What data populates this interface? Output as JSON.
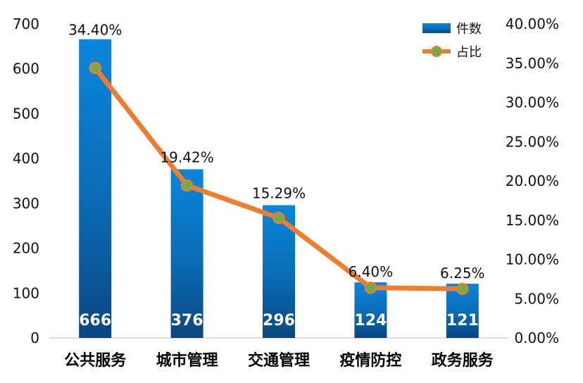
{
  "chart_data": {
    "type": "bar",
    "categories": [
      "公共服务",
      "城市管理",
      "交通管理",
      "疫情防控",
      "政务服务"
    ],
    "series": [
      {
        "name": "件数",
        "type": "bar",
        "axis": "left",
        "values": [
          666,
          376,
          296,
          124,
          121
        ],
        "value_labels": [
          "666",
          "376",
          "296",
          "124",
          "121"
        ],
        "color": "#0c7fd4"
      },
      {
        "name": "占比",
        "type": "line",
        "axis": "right",
        "values": [
          34.4,
          19.42,
          15.29,
          6.4,
          6.25
        ],
        "value_labels": [
          "34.40%",
          "19.42%",
          "15.29%",
          "6.40%",
          "6.25%"
        ],
        "color": "#ed7d31",
        "marker_color": "#70ad47"
      }
    ],
    "y_left": {
      "lim": [
        0,
        700
      ],
      "ticks": [
        0,
        100,
        200,
        300,
        400,
        500,
        600,
        700
      ],
      "tick_labels": [
        "0",
        "100",
        "200",
        "300",
        "400",
        "500",
        "600",
        "700"
      ]
    },
    "y_right": {
      "lim": [
        0,
        40
      ],
      "ticks": [
        0,
        5,
        10,
        15,
        20,
        25,
        30,
        35,
        40
      ],
      "tick_labels": [
        "0.00%",
        "5.00%",
        "10.00%",
        "15.00%",
        "20.00%",
        "25.00%",
        "30.00%",
        "35.00%",
        "40.00%"
      ]
    },
    "legend": {
      "position": "top-right",
      "items": [
        "件数",
        "占比"
      ]
    },
    "grid": false,
    "title": "",
    "xlabel": "",
    "ylabel": ""
  }
}
